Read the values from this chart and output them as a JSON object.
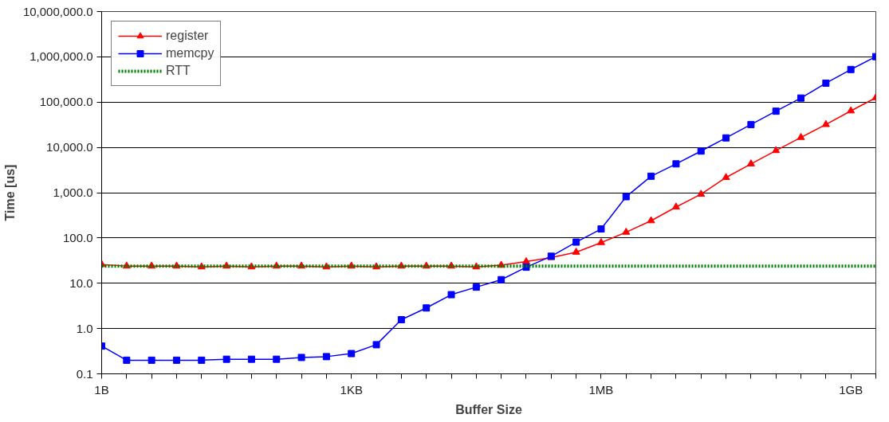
{
  "chart_data": {
    "type": "line",
    "xlabel": "Buffer Size",
    "ylabel": "Time [us]",
    "log": "y",
    "categories": [
      "1B",
      null,
      null,
      null,
      null,
      null,
      null,
      null,
      null,
      null,
      "1KB",
      null,
      null,
      null,
      null,
      null,
      null,
      null,
      null,
      null,
      "1MB",
      null,
      null,
      null,
      null,
      null,
      null,
      null,
      null,
      null,
      "1GB",
      null
    ],
    "series": [
      {
        "name": "register",
        "color": "#ff0000",
        "marker": "triangle",
        "line_style": "solid",
        "values": [
          26,
          24,
          24,
          24,
          23,
          24,
          23,
          24,
          24,
          23,
          24,
          23,
          24,
          24,
          24,
          23,
          25,
          30,
          37,
          48.5,
          79,
          134,
          240,
          482,
          925,
          2160,
          4330,
          8500,
          16600,
          32000,
          64000,
          125000
        ]
      },
      {
        "name": "memcpy",
        "color": "#0000ff",
        "marker": "square",
        "line_style": "solid",
        "values": [
          0.41,
          0.2,
          0.2,
          0.2,
          0.2,
          0.21,
          0.21,
          0.21,
          0.23,
          0.24,
          0.28,
          0.44,
          1.57,
          2.85,
          5.6,
          8.2,
          12,
          22.6,
          39.5,
          81,
          158,
          815,
          2310,
          4330,
          8300,
          16200,
          32000,
          63000,
          123000,
          262000,
          525000,
          1010000
        ]
      },
      {
        "name": "RTT",
        "color": "#008000",
        "marker": "none",
        "line_style": "dotted",
        "values": [
          24,
          24,
          24,
          24,
          24,
          24,
          24,
          24,
          24,
          24,
          24,
          24,
          24,
          24,
          24,
          24,
          24,
          24,
          24,
          24,
          24,
          24,
          24,
          24,
          24,
          24,
          24,
          24,
          24,
          24,
          24,
          24
        ]
      }
    ],
    "ylim": [
      0.1,
      10000000
    ],
    "yticks": [
      {
        "value": 0.1,
        "label": "0.1"
      },
      {
        "value": 1,
        "label": "1.0"
      },
      {
        "value": 10,
        "label": "10.0"
      },
      {
        "value": 100,
        "label": "100.0"
      },
      {
        "value": 1000,
        "label": "1,000.0"
      },
      {
        "value": 10000,
        "label": "10,000.0"
      },
      {
        "value": 100000,
        "label": "100,000.0"
      },
      {
        "value": 1000000,
        "label": "1,000,000.0"
      },
      {
        "value": 10000000,
        "label": "10,000,000.0"
      }
    ],
    "grid": "y",
    "legend": "top left"
  }
}
